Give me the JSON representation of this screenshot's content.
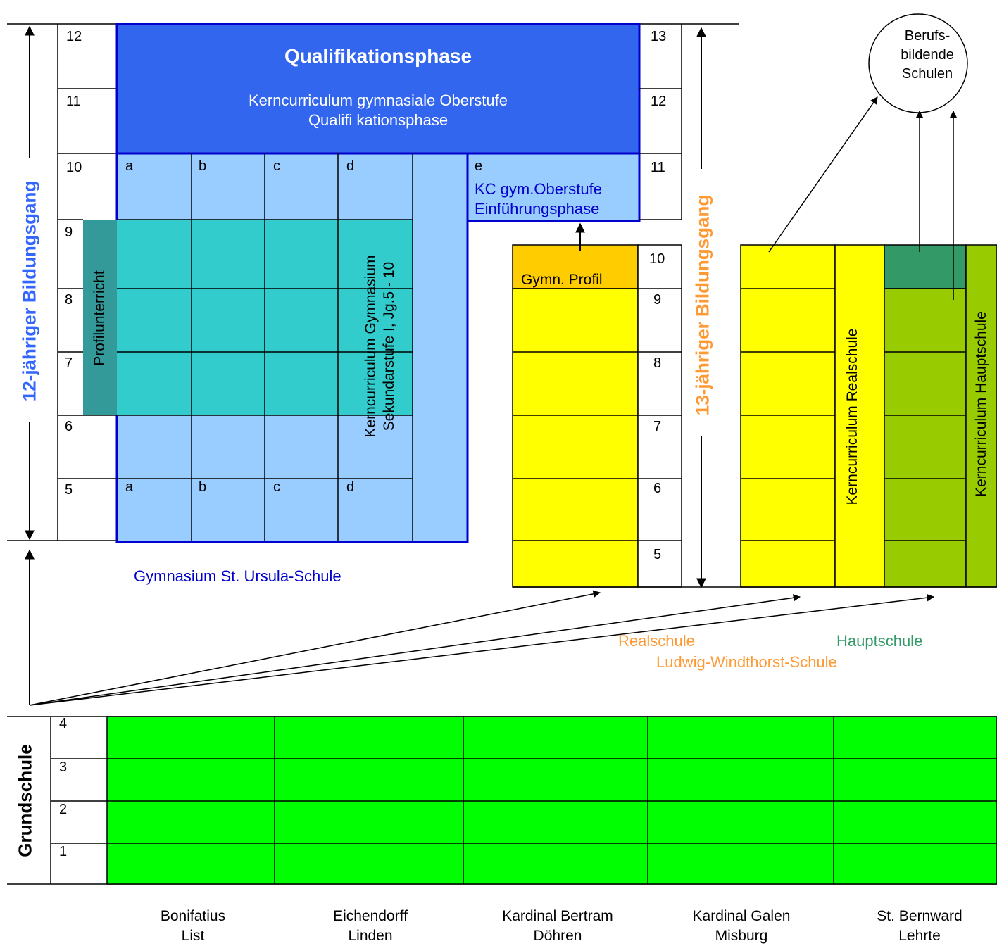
{
  "gymnasium": {
    "name": "Gymnasium St. Ursula-Schule",
    "bildungsgang": "12-jähriger Bildungsgang",
    "qualifikation_title": "Qualifikationsphase",
    "qualifikation_sub1": "Kerncurriculum gymnasiale Oberstufe",
    "qualifikation_sub2": "Qualifi kationsphase",
    "profilunterricht": "Profilunterricht",
    "kc_sek1_line1": "Kerncurriculum Gymnasium",
    "kc_sek1_line2": "Sekundarstufe I, Jg.5 - 10",
    "grades": [
      "12",
      "11",
      "10",
      "9",
      "8",
      "7",
      "6",
      "5"
    ],
    "columns_top": [
      "a",
      "b",
      "c",
      "d"
    ],
    "columns_bottom": [
      "a",
      "b",
      "c",
      "d"
    ],
    "einfuehrung_letter": "e",
    "einfuehrung_line1": "KC gym.Oberstufe",
    "einfuehrung_line2": "Einführungsphase"
  },
  "ludwig": {
    "name": "Ludwig-Windthorst-Schule",
    "bildungsgang": "13-jähriger Bildungsgang",
    "grades": [
      "13",
      "12",
      "11",
      "10",
      "9",
      "8",
      "7",
      "6",
      "5"
    ],
    "gymn_profil": "Gymn. Profil",
    "realschule_label": "Realschule",
    "hauptschule_label": "Hauptschule",
    "kc_realschule": "Kerncurriculum Realschule",
    "kc_hauptschule": "Kerncurriculum Hauptschule"
  },
  "berufsbildende": {
    "line1": "Berufs-",
    "line2": "bildende",
    "line3": "Schulen"
  },
  "grundschule": {
    "title": "Grundschule",
    "grades": [
      "4",
      "3",
      "2",
      "1"
    ],
    "schools": [
      {
        "name": "Bonifatius",
        "place": "List"
      },
      {
        "name": "Eichendorff",
        "place": "Linden"
      },
      {
        "name": "Kardinal Bertram",
        "place": "Döhren"
      },
      {
        "name": "Kardinal Galen",
        "place": "Misburg"
      },
      {
        "name": "St. Bernward",
        "place": "Lehrte"
      }
    ]
  },
  "colors": {
    "qualifikation": "#3366ee",
    "light_blue": "#99ccff",
    "teal": "#33cccc",
    "profil_teal": "#339999",
    "yellow": "#ffff00",
    "gymn_profil": "#ffcc00",
    "hauptschule_green": "#99cc00",
    "hauptschule_top": "#339966",
    "grundschule_green": "#00ff00",
    "blue_text": "#3366ff",
    "orange_text": "#ff9933",
    "green_text": "#339966",
    "navy_text": "#0000cc"
  }
}
